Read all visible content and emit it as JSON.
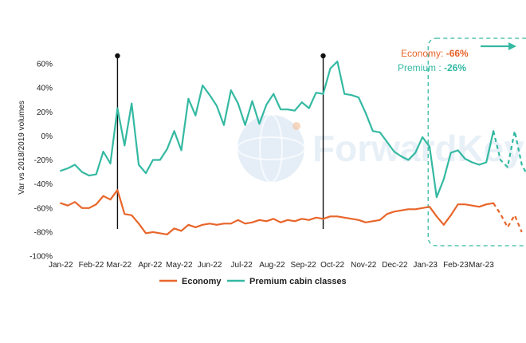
{
  "chart_data": {
    "type": "line",
    "title": "",
    "xlabel": "",
    "ylabel": "Var vs 2018/2019 volumes",
    "ylim": [
      -100,
      60
    ],
    "yticks": [
      -100,
      -80,
      -60,
      -40,
      -20,
      0,
      20,
      40,
      60
    ],
    "ytick_labels": [
      "-100%",
      "-80%",
      "-60%",
      "-40%",
      "-20%",
      "0%",
      "20%",
      "40%",
      "60%"
    ],
    "x_ticks": [
      {
        "label": "Jan-22",
        "x": 0
      },
      {
        "label": "Feb-22",
        "x": 4.3
      },
      {
        "label": "Mar-22",
        "x": 8.2
      },
      {
        "label": "Apr-22",
        "x": 12.6
      },
      {
        "label": "May-22",
        "x": 16.7
      },
      {
        "label": "Jun-22",
        "x": 21.0
      },
      {
        "label": "Jul-22",
        "x": 25.5
      },
      {
        "label": "Aug-22",
        "x": 29.8
      },
      {
        "label": "Sep-22",
        "x": 34.2
      },
      {
        "label": "Oct-22",
        "x": 38.3
      },
      {
        "label": "Nov-22",
        "x": 42.7
      },
      {
        "label": "Dec-22",
        "x": 47.1
      },
      {
        "label": "Jan-23",
        "x": 51.4
      },
      {
        "label": "Feb-23",
        "x": 55.7
      },
      {
        "label": "Mar-23",
        "x": 59.3
      }
    ],
    "x_range": [
      -0.7,
      62
    ],
    "series": [
      {
        "name": "Economy",
        "color": "#e8652a",
        "solid": [
          [
            0,
            -56
          ],
          [
            1,
            -58
          ],
          [
            2,
            -55
          ],
          [
            3,
            -60
          ],
          [
            4,
            -60
          ],
          [
            5,
            -57
          ],
          [
            6,
            -50
          ],
          [
            7,
            -53
          ],
          [
            8,
            -45
          ],
          [
            9,
            -65
          ],
          [
            10,
            -66
          ],
          [
            11,
            -73
          ],
          [
            12,
            -81
          ],
          [
            13,
            -80
          ],
          [
            14,
            -81
          ],
          [
            15,
            -82
          ],
          [
            16,
            -77
          ],
          [
            17,
            -79
          ],
          [
            18,
            -74
          ],
          [
            19,
            -76
          ],
          [
            20,
            -74
          ],
          [
            21,
            -73
          ],
          [
            22,
            -74
          ],
          [
            23,
            -73
          ],
          [
            24,
            -73
          ],
          [
            25,
            -70
          ],
          [
            26,
            -73
          ],
          [
            27,
            -72
          ],
          [
            28,
            -70
          ],
          [
            29,
            -71
          ],
          [
            30,
            -69
          ],
          [
            31,
            -72
          ],
          [
            32,
            -70
          ],
          [
            33,
            -71
          ],
          [
            34,
            -69
          ],
          [
            35,
            -70
          ],
          [
            36,
            -68
          ],
          [
            37,
            -69
          ],
          [
            38,
            -67
          ],
          [
            39,
            -67
          ],
          [
            40,
            -68
          ],
          [
            41,
            -69
          ],
          [
            42,
            -70
          ],
          [
            43,
            -72
          ],
          [
            44,
            -71
          ],
          [
            45,
            -70
          ],
          [
            46,
            -65
          ],
          [
            47,
            -63
          ],
          [
            48,
            -62
          ],
          [
            49,
            -61
          ],
          [
            50,
            -61
          ],
          [
            51,
            -60
          ],
          [
            52,
            -59
          ],
          [
            53,
            -67
          ],
          [
            54,
            -74
          ],
          [
            55,
            -66
          ],
          [
            56,
            -57
          ],
          [
            57,
            -57
          ],
          [
            58,
            -58
          ],
          [
            59,
            -59
          ],
          [
            60,
            -57
          ],
          [
            61,
            -56
          ]
        ],
        "forecast": [
          [
            61,
            -56
          ],
          [
            62,
            -65
          ],
          [
            63,
            -76
          ],
          [
            64,
            -66
          ],
          [
            65,
            -80
          ]
        ]
      },
      {
        "name": "Premium cabin classes",
        "color": "#34b9a2",
        "solid": [
          [
            0,
            -29
          ],
          [
            1,
            -27
          ],
          [
            2,
            -24
          ],
          [
            3,
            -30
          ],
          [
            4,
            -33
          ],
          [
            5,
            -32
          ],
          [
            6,
            -13
          ],
          [
            7,
            -23
          ],
          [
            8,
            23
          ],
          [
            9,
            -8
          ],
          [
            10,
            27
          ],
          [
            11,
            -24
          ],
          [
            12,
            -31
          ],
          [
            13,
            -20
          ],
          [
            14,
            -20
          ],
          [
            15,
            -11
          ],
          [
            16,
            4
          ],
          [
            17,
            -12
          ],
          [
            18,
            31
          ],
          [
            19,
            17
          ],
          [
            20,
            42
          ],
          [
            21,
            34
          ],
          [
            22,
            25
          ],
          [
            23,
            9
          ],
          [
            24,
            38
          ],
          [
            25,
            27
          ],
          [
            26,
            9
          ],
          [
            27,
            29
          ],
          [
            28,
            10
          ],
          [
            29,
            26
          ],
          [
            30,
            35
          ],
          [
            31,
            22
          ],
          [
            32,
            22
          ],
          [
            33,
            21
          ],
          [
            34,
            28
          ],
          [
            35,
            23
          ],
          [
            36,
            36
          ],
          [
            37,
            35
          ],
          [
            38,
            56
          ],
          [
            39,
            62
          ],
          [
            40,
            35
          ],
          [
            41,
            34
          ],
          [
            42,
            32
          ],
          [
            43,
            19
          ],
          [
            44,
            4
          ],
          [
            45,
            3
          ],
          [
            46,
            -5
          ],
          [
            47,
            -13
          ],
          [
            48,
            -17
          ],
          [
            49,
            -20
          ],
          [
            50,
            -14
          ],
          [
            51,
            -1
          ],
          [
            52,
            -9
          ],
          [
            53,
            -51
          ],
          [
            54,
            -36
          ],
          [
            55,
            -14
          ],
          [
            56,
            -12
          ],
          [
            57,
            -19
          ],
          [
            58,
            -22
          ],
          [
            59,
            -24
          ],
          [
            60,
            -22
          ],
          [
            61,
            4
          ]
        ],
        "forecast": [
          [
            61,
            4
          ],
          [
            62,
            -20
          ],
          [
            63,
            -26
          ],
          [
            64,
            4
          ],
          [
            65,
            -24
          ],
          [
            66,
            -35
          ]
        ]
      }
    ],
    "event_lines": [
      8,
      37
    ],
    "forecast_box": {
      "x_start": 51.8,
      "x_end": 66.7
    },
    "annotation": {
      "economy_label": "Economy: ",
      "economy_value": "-66%",
      "premium_label": "Premium : ",
      "premium_value": "-26%"
    },
    "legend": {
      "placement": "bottom",
      "items": [
        {
          "label": "Economy",
          "color": "#e8652a"
        },
        {
          "label": "Premium cabin classes",
          "color": "#34b9a2"
        }
      ]
    },
    "watermark_text": "ForwardKeys",
    "grid": false
  }
}
